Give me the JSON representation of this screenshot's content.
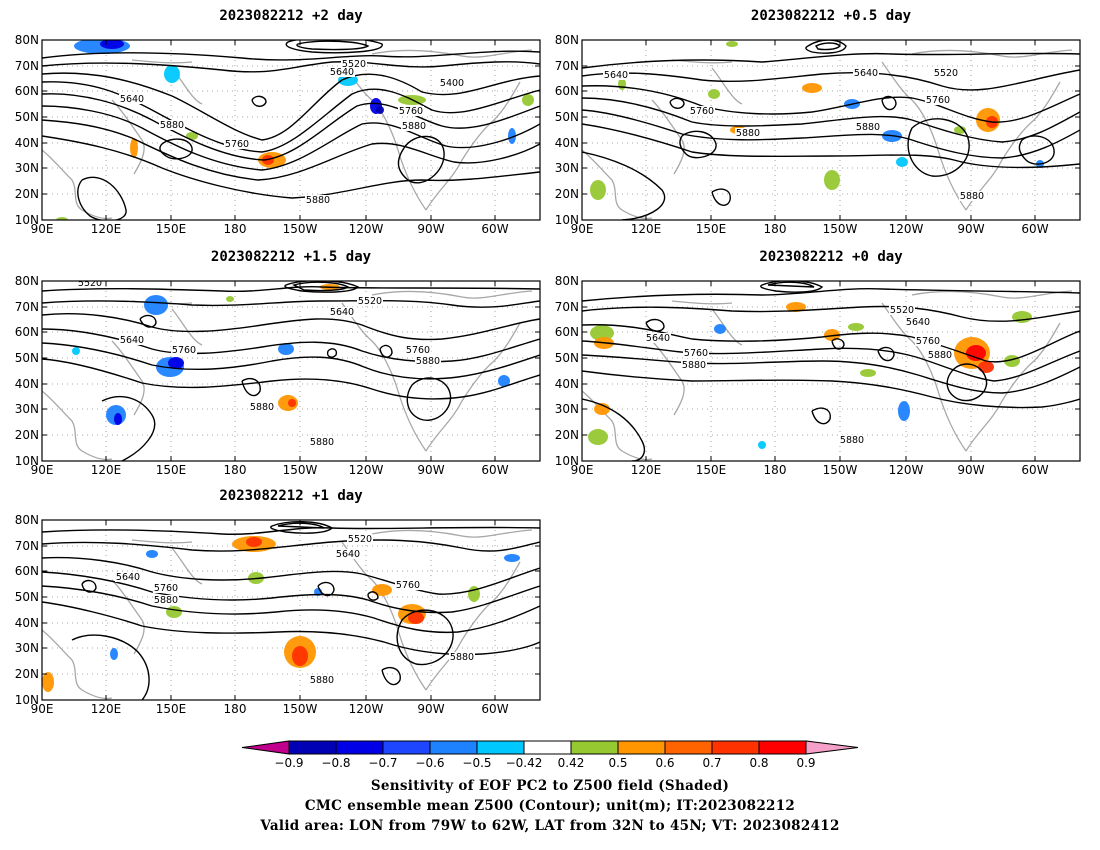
{
  "x_ticks": [
    "90E",
    "120E",
    "150E",
    "180",
    "150W",
    "120W",
    "90W",
    "60W"
  ],
  "y_ticks": [
    "10N",
    "20N",
    "30N",
    "40N",
    "50N",
    "60N",
    "70N",
    "80N"
  ],
  "panels": [
    {
      "id": "plus2",
      "title": "2023082212 +2 day",
      "labels": [
        "5520",
        "5640",
        "5400",
        "5640",
        "5760",
        "5880",
        "5760",
        "5880",
        "5880"
      ]
    },
    {
      "id": "plus05",
      "title": "2023082212 +0.5 day",
      "labels": [
        "5640",
        "5640",
        "5520",
        "5760",
        "5760",
        "5880",
        "5880",
        "5880"
      ]
    },
    {
      "id": "plus15",
      "title": "2023082212 +1.5 day",
      "labels": [
        "5520",
        "5520",
        "5640",
        "5640",
        "5760",
        "5760",
        "5880",
        "5880",
        "5880"
      ]
    },
    {
      "id": "plus0",
      "title": "2023082212 +0 day",
      "labels": [
        "5520",
        "5640",
        "5640",
        "5760",
        "5760",
        "5880",
        "5880",
        "5880"
      ]
    },
    {
      "id": "plus1",
      "title": "2023082212 +1 day",
      "labels": [
        "5520",
        "5640",
        "5640",
        "5760",
        "5760",
        "5880",
        "5880",
        "5880"
      ]
    }
  ],
  "colorbar": {
    "ticks": [
      "−0.9",
      "−0.8",
      "−0.7",
      "−0.6",
      "−0.5",
      "−0.42",
      "0.42",
      "0.5",
      "0.6",
      "0.7",
      "0.8",
      "0.9"
    ],
    "colors": [
      "#c0008c",
      "#0000b4",
      "#0000e6",
      "#1e46ff",
      "#1e82ff",
      "#00c8ff",
      "#ffffff",
      "#96c832",
      "#ff9600",
      "#ff6400",
      "#ff3200",
      "#ff0000",
      "#f5a0c8"
    ]
  },
  "footer": {
    "line1": "Sensitivity of EOF PC2 to Z500 field (Shaded)",
    "line2": "CMC ensemble mean Z500 (Contour); unit(m); IT:2023082212",
    "line3": "Valid area: LON from 79W to 62W, LAT from 32N to 45N; VT: 2023082412"
  }
}
